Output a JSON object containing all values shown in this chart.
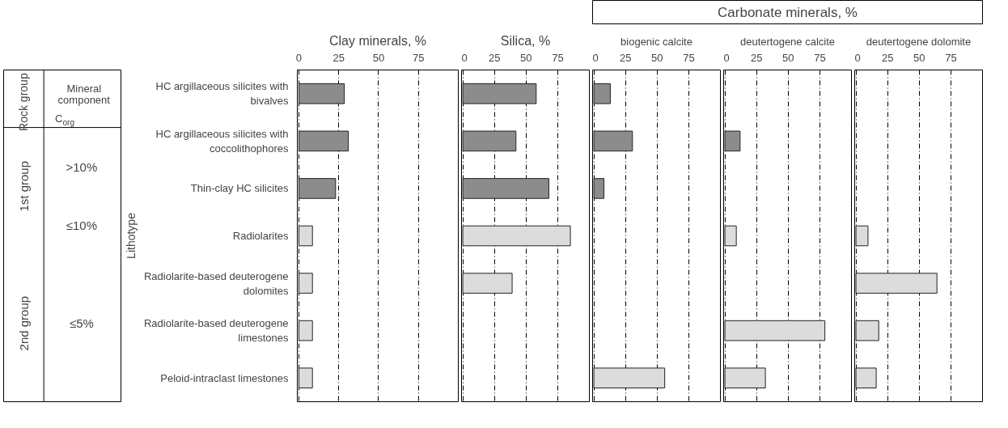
{
  "chart_data": [
    {
      "type": "other",
      "annotations": [
        "Rock group",
        "Mineral component",
        "C$_{org}$",
        "1st group",
        "2nd group",
        ">10%",
        "≤10%",
        "≤5%",
        "Carbonate minerals, %"
      ]
    },
    {
      "type": "bar",
      "orientation": "horizontal",
      "title": "Clay minerals, %",
      "ylabel": "Lithotype",
      "categories": [
        "HC argillaceous silicites with bivalves",
        "HC argillaceous silicites with coccolithophores",
        "Thin-clay HC silicites",
        "Radiolarites",
        "Radiolarite-based deuterogene dolomites",
        "Radiolarite-based deuterogene limestones",
        "Peloid-intraclast limestones"
      ],
      "values": [
        28.5,
        31,
        23,
        8.5,
        8.5,
        8.5,
        8.5
      ],
      "colors": [
        "#8c8c8c",
        "#8c8c8c",
        "#8c8c8c",
        "#dcdcdc",
        "#dcdcdc",
        "#dcdcdc",
        "#dcdcdc"
      ],
      "xlim": [
        -1,
        100
      ],
      "xticks": [
        0,
        25,
        50,
        75
      ],
      "grid": "x"
    },
    {
      "type": "bar",
      "orientation": "horizontal",
      "title": "Silica, %",
      "tick_labels": "x",
      "categories": [
        "HC argillaceous silicites with bivalves",
        "HC argillaceous silicites with coccolithophores",
        "Thin-clay HC silicites",
        "Radiolarites",
        "Radiolarite-based deuterogene dolomites",
        "Radiolarite-based deuterogene limestones",
        "Peloid-intraclast limestones"
      ],
      "values": [
        58,
        42,
        68,
        85,
        39,
        null,
        null
      ],
      "colors": [
        "#8c8c8c",
        "#8c8c8c",
        "#8c8c8c",
        "#dcdcdc",
        "#dcdcdc",
        "#dcdcdc",
        "#dcdcdc"
      ],
      "xlim": [
        -1,
        100
      ],
      "xticks": [
        0,
        25,
        50,
        75
      ],
      "grid": "x"
    },
    {
      "type": "bar",
      "orientation": "horizontal",
      "title": "biogenic calcite",
      "tick_labels": "x",
      "categories": [
        "HC argillaceous silicites with bivalves",
        "HC argillaceous silicites with coccolithophores",
        "Thin-clay HC silicites",
        "Radiolarites",
        "Radiolarite-based deuterogene dolomites",
        "Radiolarite-based deuterogene limestones",
        "Peloid-intraclast limestones"
      ],
      "values": [
        13,
        30.5,
        8,
        null,
        null,
        null,
        56
      ],
      "colors": [
        "#8c8c8c",
        "#8c8c8c",
        "#8c8c8c",
        "#dcdcdc",
        "#dcdcdc",
        "#dcdcdc",
        "#dcdcdc"
      ],
      "xlim": [
        -1,
        100
      ],
      "xticks": [
        0,
        25,
        50,
        75
      ],
      "grid": "x"
    },
    {
      "type": "bar",
      "orientation": "horizontal",
      "title": "deutertogene calcite",
      "tick_labels": "x",
      "categories": [
        "HC argillaceous silicites with bivalves",
        "HC argillaceous silicites with coccolithophores",
        "Thin-clay HC silicites",
        "Radiolarites",
        "Radiolarite-based deuterogene dolomites",
        "Radiolarite-based deuterogene limestones",
        "Peloid-intraclast limestones"
      ],
      "values": [
        null,
        12,
        null,
        9,
        null,
        79,
        32
      ],
      "colors": [
        "#8c8c8c",
        "#8c8c8c",
        "#8c8c8c",
        "#dcdcdc",
        "#dcdcdc",
        "#dcdcdc",
        "#dcdcdc"
      ],
      "xlim": [
        -1,
        100
      ],
      "xticks": [
        0,
        25,
        50,
        75
      ],
      "grid": "x"
    },
    {
      "type": "bar",
      "orientation": "horizontal",
      "title": "deutertogene dolomite",
      "tick_labels": "x",
      "categories": [
        "HC argillaceous silicites with bivalves",
        "HC argillaceous silicites with coccolithophores",
        "Thin-clay HC silicites",
        "Radiolarites",
        "Radiolarite-based deuterogene dolomites",
        "Radiolarite-based deuterogene limestones",
        "Peloid-intraclast limestones"
      ],
      "values": [
        null,
        null,
        null,
        9.5,
        64,
        18,
        16
      ],
      "colors": [
        "#8c8c8c",
        "#8c8c8c",
        "#8c8c8c",
        "#dcdcdc",
        "#dcdcdc",
        "#dcdcdc",
        "#dcdcdc"
      ],
      "xlim": [
        -1,
        100
      ],
      "xticks": [
        0,
        25,
        50,
        75
      ],
      "grid": "x"
    }
  ]
}
